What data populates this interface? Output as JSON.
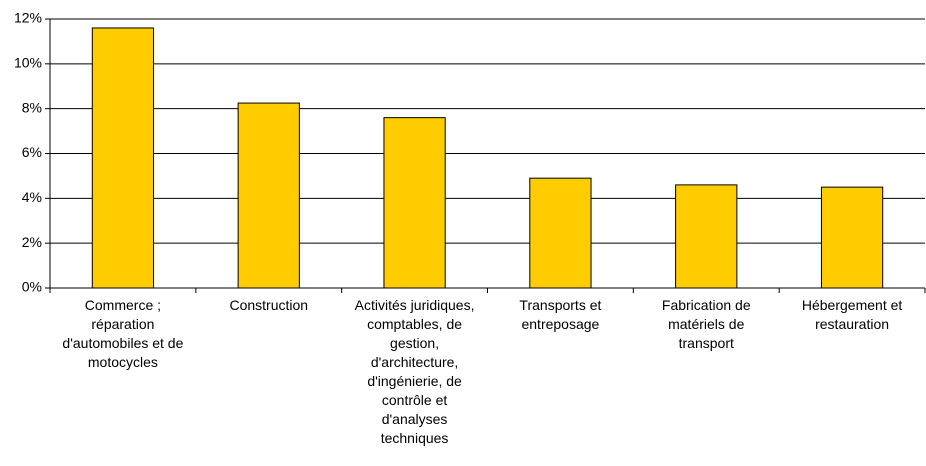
{
  "chart_data": {
    "type": "bar",
    "categories": [
      "Commerce ; réparation d'automobiles et de motocycles",
      "Construction",
      "Activités juridiques, comptables, de gestion, d'architecture, d'ingénierie, de contrôle et d'analyses techniques",
      "Transports et entreposage",
      "Fabrication de matériels de transport",
      "Hébergement et restauration"
    ],
    "values": [
      11.6,
      8.25,
      7.6,
      4.9,
      4.6,
      4.5
    ],
    "color": "#ffcc00",
    "ylim": [
      0,
      12
    ],
    "yticks": [
      {
        "value": 0,
        "label": "0%"
      },
      {
        "value": 2,
        "label": "2%"
      },
      {
        "value": 4,
        "label": "4%"
      },
      {
        "value": 6,
        "label": "6%"
      },
      {
        "value": 8,
        "label": "8%"
      },
      {
        "value": 10,
        "label": "10%"
      },
      {
        "value": 12,
        "label": "12%"
      }
    ],
    "grid": true
  }
}
